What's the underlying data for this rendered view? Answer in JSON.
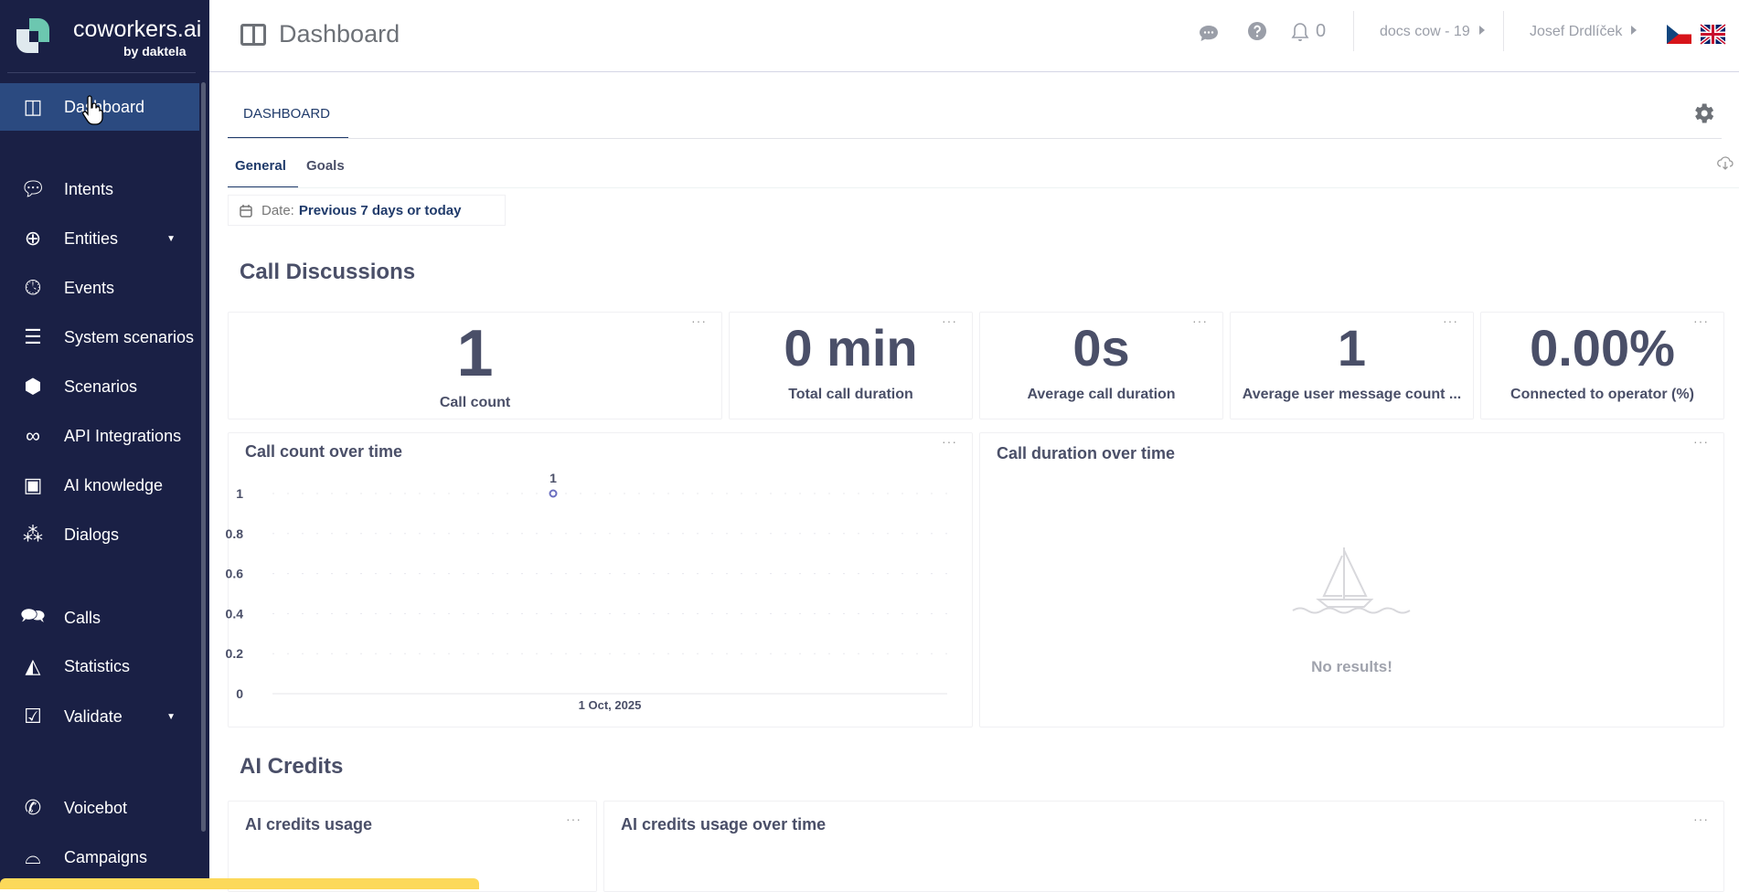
{
  "brand": {
    "name": "coworkers.ai",
    "sub": "by daktela"
  },
  "sidebar": {
    "items": [
      {
        "label": "Dashboard",
        "icon": "dashboard-icon"
      },
      {
        "label": "Intents",
        "icon": "chat-bubble-icon"
      },
      {
        "label": "Entities",
        "icon": "plus-bubble-icon",
        "caret": "▼"
      },
      {
        "label": "Events",
        "icon": "clock-icon"
      },
      {
        "label": "System scenarios",
        "icon": "layers-icon"
      },
      {
        "label": "Scenarios",
        "icon": "cube-icon"
      },
      {
        "label": "API Integrations",
        "icon": "link-icon"
      },
      {
        "label": "AI knowledge",
        "icon": "ai-chip-icon"
      },
      {
        "label": "Dialogs",
        "icon": "cubes-icon"
      },
      {
        "label": "Calls",
        "icon": "chats-icon"
      },
      {
        "label": "Statistics",
        "icon": "area-chart-icon"
      },
      {
        "label": "Validate",
        "icon": "checkbox-icon",
        "caret": "▼"
      },
      {
        "label": "Voicebot",
        "icon": "phone-icon"
      },
      {
        "label": "Campaigns",
        "icon": "voicemail-icon"
      }
    ]
  },
  "header": {
    "title": "Dashboard",
    "notifications": "0",
    "project": "docs cow - 19",
    "user": "Josef Drdlíček"
  },
  "tabs": {
    "main": "DASHBOARD",
    "sub": [
      "General",
      "Goals"
    ]
  },
  "filter": {
    "label": "Date:",
    "value": "Previous 7 days or today"
  },
  "call_discussions": {
    "title": "Call Discussions",
    "kpis": [
      {
        "value": "1",
        "label": "Call count"
      },
      {
        "value": "0 min",
        "label": "Total call duration"
      },
      {
        "value": "0s",
        "label": "Average call duration"
      },
      {
        "value": "1",
        "label": "Average user message count ..."
      },
      {
        "value": "0.00%",
        "label": "Connected to operator (%)"
      }
    ]
  },
  "charts": {
    "count_title": "Call count over time",
    "duration_title": "Call duration over time",
    "no_results": "No results!",
    "menu": "···"
  },
  "chart_data": {
    "type": "line",
    "title": "Call count over time",
    "x": [
      "1 Oct, 2025"
    ],
    "values": [
      1
    ],
    "data_labels": [
      "1"
    ],
    "yticks": [
      "0",
      "0.2",
      "0.4",
      "0.6",
      "0.8",
      "1"
    ],
    "ylim": [
      0,
      1
    ],
    "grid": true,
    "series_color": "#6b6fc0"
  },
  "ai_credits": {
    "title": "AI Credits",
    "usage_title": "AI credits usage",
    "over_time_title": "AI credits usage over time"
  },
  "colors": {
    "sidebar": "#1a2045",
    "active": "#2b4a80",
    "accent": "#1f3a6a",
    "banner": "#fcd95a"
  }
}
